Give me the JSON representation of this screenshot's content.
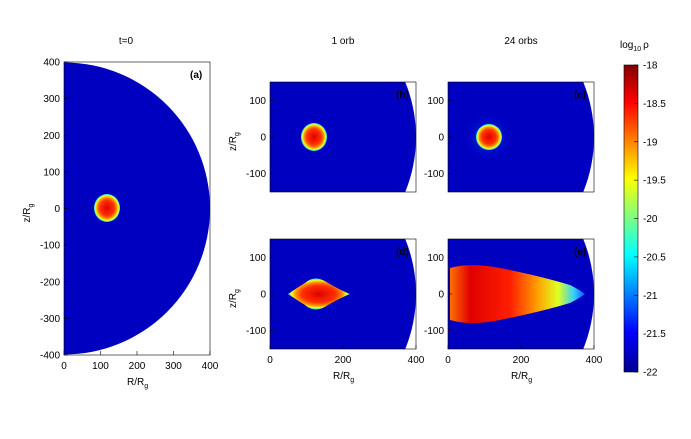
{
  "chart_data": [
    {
      "type": "heatmap",
      "title": "t=0",
      "label": "(a)",
      "xlabel": {
        "text": "R/R",
        "sub": "g"
      },
      "ylabel": {
        "text": "z/R",
        "sub": "g"
      },
      "xlim": [
        0,
        400
      ],
      "ylim": [
        -400,
        400
      ],
      "xticks": [
        0,
        100,
        200,
        300,
        400
      ],
      "yticks": [
        -400,
        -300,
        -200,
        -100,
        0,
        100,
        200,
        300,
        400
      ]
    },
    {
      "type": "heatmap",
      "title": "1 orb",
      "label": "(b)",
      "ylabel": {
        "text": "z/R",
        "sub": "g"
      },
      "xlim": [
        0,
        400
      ],
      "ylim": [
        -150,
        150
      ],
      "yticks": [
        -100,
        0,
        100
      ]
    },
    {
      "type": "heatmap",
      "title": "24 orbs",
      "label": "(c)",
      "xlim": [
        0,
        400
      ],
      "ylim": [
        -150,
        150
      ],
      "yticks": [
        -100,
        0,
        100
      ]
    },
    {
      "type": "heatmap",
      "label": "(d)",
      "xlabel": {
        "text": "R/R",
        "sub": "g"
      },
      "ylabel": {
        "text": "z/R",
        "sub": "g"
      },
      "xlim": [
        0,
        400
      ],
      "ylim": [
        -150,
        150
      ],
      "xticks": [
        0,
        200,
        400
      ],
      "yticks": [
        -100,
        0,
        100
      ]
    },
    {
      "type": "heatmap",
      "label": "(e)",
      "xlabel": {
        "text": "R/R",
        "sub": "g"
      },
      "xlim": [
        0,
        400
      ],
      "ylim": [
        -150,
        150
      ],
      "xticks": [
        0,
        200,
        400
      ],
      "yticks": [
        -100,
        0,
        100
      ]
    }
  ],
  "colorbar": {
    "label": {
      "main": "log",
      "sub": "10",
      "rest": "ρ"
    },
    "lim": [
      -22,
      -18
    ],
    "ticks": [
      -22,
      -21.5,
      -21,
      -20.5,
      -20,
      -19.5,
      -19,
      -18.5,
      -18
    ]
  }
}
